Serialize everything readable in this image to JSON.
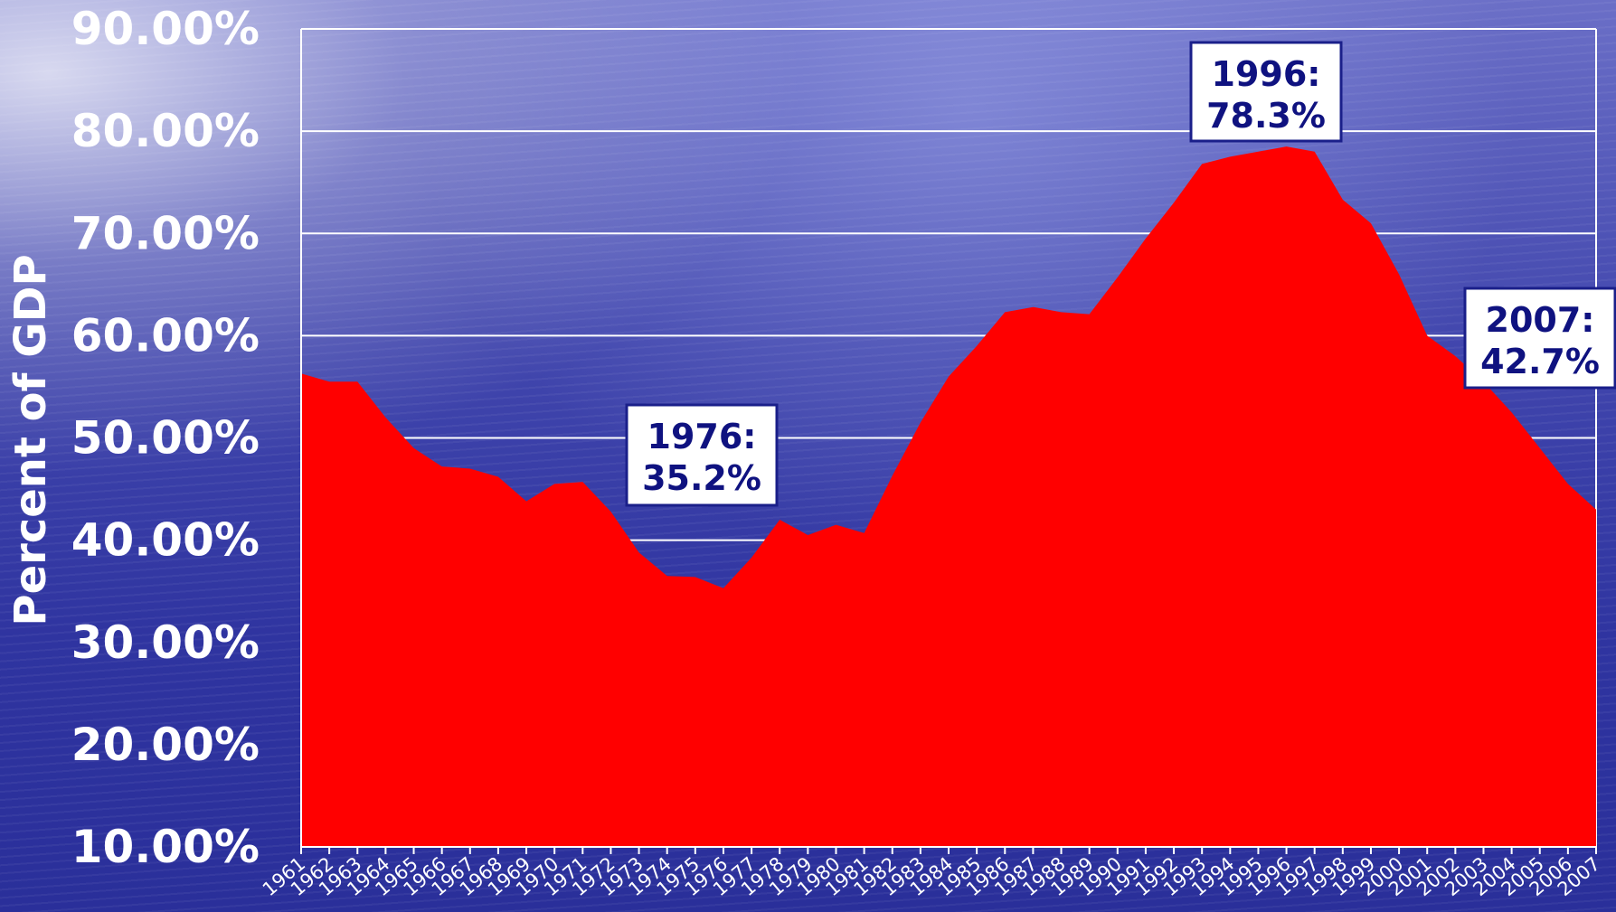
{
  "chart_data": {
    "type": "area",
    "title": "",
    "xlabel": "",
    "ylabel": "Percent of GDP",
    "ylim": [
      10,
      90
    ],
    "y_tick_values": [
      10,
      20,
      30,
      40,
      50,
      60,
      70,
      80,
      90
    ],
    "y_tick_labels": [
      "10.00%",
      "20.00%",
      "30.00%",
      "40.00%",
      "50.00%",
      "60.00%",
      "70.00%",
      "80.00%",
      "90.00%"
    ],
    "grid": true,
    "x": [
      "1961",
      "1962",
      "1963",
      "1964",
      "1965",
      "1966",
      "1967",
      "1968",
      "1969",
      "1970",
      "1971",
      "1972",
      "1973",
      "1974",
      "1975",
      "1976",
      "1977",
      "1978",
      "1979",
      "1980",
      "1981",
      "1982",
      "1983",
      "1984",
      "1985",
      "1986",
      "1987",
      "1988",
      "1989",
      "1990",
      "1991",
      "1992",
      "1993",
      "1994",
      "1995",
      "1996",
      "1997",
      "1998",
      "1999",
      "2000",
      "2001",
      "2002",
      "2003",
      "2004",
      "2005",
      "2006",
      "2007"
    ],
    "series": [
      {
        "values": [
          56.3,
          55.5,
          55.5,
          52.0,
          49.0,
          47.2,
          47.0,
          46.2,
          43.8,
          45.5,
          45.7,
          42.8,
          38.8,
          36.5,
          36.4,
          35.3,
          38.3,
          42.0,
          40.5,
          41.5,
          40.7,
          46.3,
          51.5,
          56.0,
          59.0,
          62.3,
          62.8,
          62.3,
          62.1,
          65.7,
          69.5,
          73.0,
          76.8,
          77.5,
          78.0,
          78.5,
          78.0,
          73.3,
          71.0,
          66.0,
          60.0,
          58.0,
          55.5,
          52.5,
          49.0,
          45.5,
          43.0
        ],
        "color": "#ff0000"
      }
    ],
    "annotations": [
      {
        "line1": "1976:",
        "line2": "35.2%",
        "year": "1976",
        "value": 35.2
      },
      {
        "line1": "1996:",
        "line2": "78.3%",
        "year": "1996",
        "value": 78.3
      },
      {
        "line1": "2007:",
        "line2": "42.7%",
        "year": "2007",
        "value": 42.7
      }
    ],
    "colors": {
      "area": "#ff0000",
      "grid": "#ffffff",
      "text": "#ffffff",
      "annotation_text": "#0f1280",
      "annotation_bg": "#ffffff"
    }
  }
}
